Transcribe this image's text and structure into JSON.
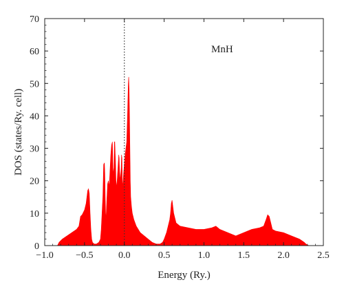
{
  "chart_data": {
    "type": "area",
    "title": "",
    "xlabel": "Energy (Ry.)",
    "ylabel": "DOS (states/Ry. cell)",
    "xlim": [
      -1.0,
      2.5
    ],
    "ylim": [
      0,
      70
    ],
    "xticks": [
      -1.0,
      -0.5,
      0.0,
      0.5,
      1.0,
      1.5,
      2.0,
      2.5
    ],
    "xtick_labels": [
      "−1.0",
      "−0.5",
      "0.0",
      "0.5",
      "1.0",
      "1.5",
      "2.0",
      "2.5"
    ],
    "yticks": [
      0,
      10,
      20,
      30,
      40,
      50,
      60,
      70
    ],
    "ytick_labels": [
      "0",
      "10",
      "20",
      "30",
      "40",
      "50",
      "60",
      "70"
    ],
    "annotation": "MnH",
    "fermi_level": 0.0,
    "fill_color": "#ff0000",
    "series": [
      {
        "x": [
          -0.84,
          -0.82,
          -0.78,
          -0.72,
          -0.66,
          -0.6,
          -0.57,
          -0.55,
          -0.53,
          -0.52,
          -0.5,
          -0.48,
          -0.46,
          -0.45,
          -0.44,
          -0.43,
          -0.42,
          -0.41,
          -0.4,
          -0.38,
          -0.35,
          -0.32,
          -0.3,
          -0.29,
          -0.28,
          -0.27,
          -0.26,
          -0.25,
          -0.245,
          -0.24,
          -0.235,
          -0.23,
          -0.22,
          -0.21,
          -0.2,
          -0.19,
          -0.18,
          -0.17,
          -0.16,
          -0.15,
          -0.145,
          -0.14,
          -0.13,
          -0.125,
          -0.12,
          -0.11,
          -0.105,
          -0.1,
          -0.09,
          -0.08,
          -0.07,
          -0.065,
          -0.06,
          -0.05,
          -0.04,
          -0.035,
          -0.03,
          -0.025,
          -0.02,
          -0.01,
          0.0,
          0.01,
          0.02,
          0.03,
          0.04,
          0.05,
          0.055,
          0.06,
          0.065,
          0.07,
          0.075,
          0.08,
          0.09,
          0.1,
          0.12,
          0.15,
          0.2,
          0.25,
          0.3,
          0.35,
          0.4,
          0.45,
          0.48,
          0.5,
          0.53,
          0.55,
          0.57,
          0.58,
          0.59,
          0.6,
          0.62,
          0.65,
          0.7,
          0.8,
          0.9,
          1.0,
          1.1,
          1.15,
          1.2,
          1.3,
          1.4,
          1.5,
          1.6,
          1.7,
          1.75,
          1.78,
          1.8,
          1.82,
          1.84,
          1.86,
          1.9,
          2.0,
          2.1,
          2.2,
          2.26,
          2.28,
          2.3,
          2.32
        ],
        "y": [
          0,
          1,
          2,
          3,
          4,
          5,
          6,
          9,
          9.5,
          10,
          11,
          13,
          17,
          17.5,
          16,
          10,
          5,
          2,
          1,
          0.5,
          0.5,
          1,
          2,
          5,
          10,
          15,
          25,
          25.5,
          22,
          15,
          10,
          8,
          14,
          19,
          20,
          18,
          23,
          28,
          31,
          32,
          26,
          22,
          24,
          32,
          32,
          25,
          20,
          18,
          20,
          24,
          28,
          27,
          23,
          20,
          24,
          28,
          27,
          20,
          18,
          22,
          25,
          28,
          30,
          32,
          40,
          50,
          52,
          48,
          40,
          30,
          20,
          15,
          12,
          10,
          8,
          6,
          4,
          3,
          2,
          1,
          0.5,
          0.5,
          1,
          2,
          4,
          6,
          8,
          10,
          13,
          14,
          10,
          7,
          6,
          5.5,
          5,
          5,
          5.5,
          6,
          5,
          4,
          3,
          4,
          5,
          5.5,
          6,
          8,
          9.5,
          9,
          7,
          5,
          4.5,
          4,
          3,
          2,
          1,
          0.5,
          0.2,
          0
        ]
      }
    ]
  }
}
